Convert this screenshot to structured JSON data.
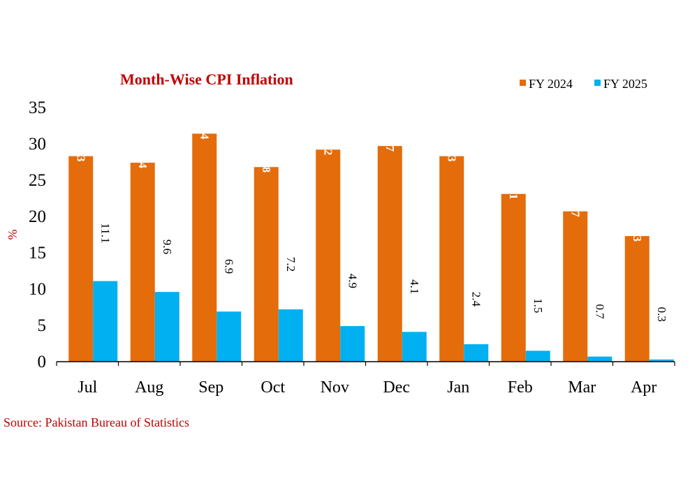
{
  "chart_data": {
    "type": "bar",
    "title": "Month-Wise CPI Inflation",
    "ylabel": "%",
    "xlabel": "",
    "ylim": [
      0,
      35
    ],
    "yticks": [
      0,
      5,
      10,
      15,
      20,
      25,
      30,
      35
    ],
    "categories": [
      "Jul",
      "Aug",
      "Sep",
      "Oct",
      "Nov",
      "Dec",
      "Jan",
      "Feb",
      "Mar",
      "Apr"
    ],
    "series": [
      {
        "name": "FY 2024",
        "color": "#E46C0A",
        "values": [
          28.3,
          27.4,
          31.4,
          26.8,
          29.2,
          29.7,
          28.3,
          23.1,
          20.7,
          17.3
        ]
      },
      {
        "name": "FY 2025",
        "color": "#00B0F0",
        "values": [
          11.1,
          9.6,
          6.9,
          7.2,
          4.9,
          4.1,
          2.4,
          1.5,
          0.7,
          0.3
        ]
      }
    ],
    "legend_position": "top-right",
    "grid": false,
    "source": "Source: Pakistan Bureau of Statistics",
    "colors": {
      "title": "#C00000",
      "source": "#C00000",
      "ylabel": "#C00000"
    }
  }
}
